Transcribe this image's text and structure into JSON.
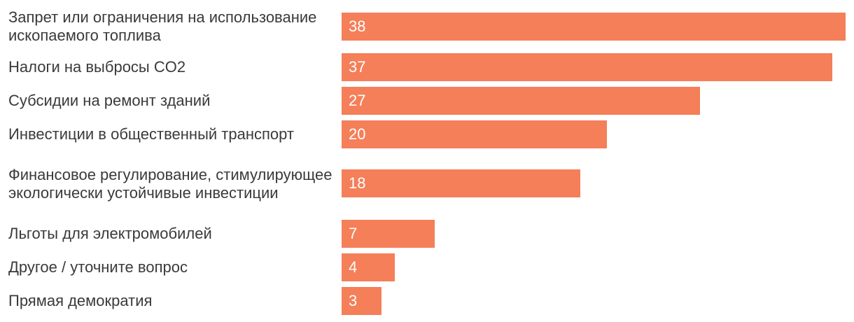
{
  "chart_data": {
    "type": "bar",
    "orientation": "horizontal",
    "categories": [
      "Запрет или ограничения на использование ископаемого топлива",
      "Налоги на выбросы CO2",
      "Субсидии на ремонт зданий",
      "Инвестиции в общественный транспорт",
      "Финансовое регулирование, стимулирующее экологически устойчивые инвестиции",
      "Льготы для электромобилей",
      "Другое / уточните вопрос",
      "Прямая демократия"
    ],
    "values": [
      38,
      37,
      27,
      20,
      18,
      7,
      4,
      3
    ],
    "bar_color": "#f47f59",
    "label_color": "#3a3a3a",
    "value_label_color": "#ffffff",
    "xlim": [
      0,
      38
    ],
    "grid": false,
    "legend": "none",
    "title": "",
    "xlabel": "",
    "ylabel": ""
  }
}
